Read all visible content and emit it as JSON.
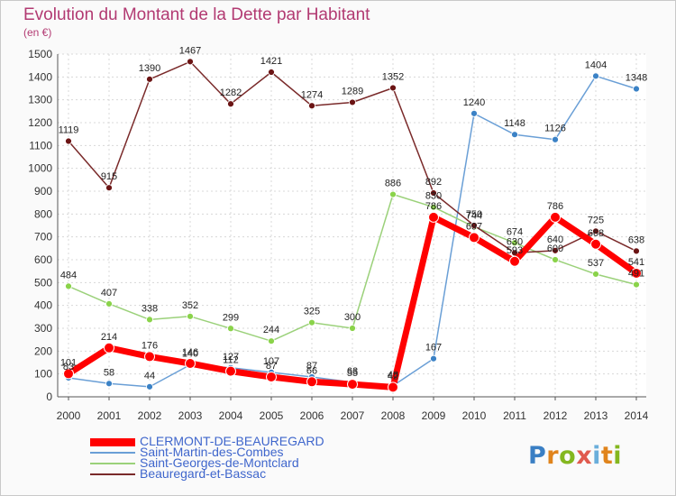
{
  "header": {
    "title": "Evolution du Montant de la Dette par Habitant",
    "unit": "(en €)"
  },
  "logo": {
    "text": "Proxiti"
  },
  "chart_data": {
    "type": "line",
    "title": "Evolution du Montant de la Dette par Habitant",
    "ylabel": "(en €)",
    "xlabel": "",
    "x": [
      "2000",
      "2001",
      "2002",
      "2003",
      "2004",
      "2005",
      "2006",
      "2007",
      "2008",
      "2009",
      "2010",
      "2011",
      "2012",
      "2013",
      "2014"
    ],
    "ylim": [
      0,
      1500
    ],
    "yticks": [
      0,
      100,
      200,
      300,
      400,
      500,
      600,
      700,
      800,
      900,
      1000,
      1100,
      1200,
      1300,
      1400,
      1500
    ],
    "grid": true,
    "legend_position": "bottom",
    "series": [
      {
        "name": "CLERMONT-DE-BEAUREGARD",
        "color": "#ff0000",
        "marker_color": "#ff0000",
        "emphasis": true,
        "values": [
          101,
          214,
          176,
          146,
          112,
          87,
          66,
          55,
          42,
          786,
          697,
          593,
          786,
          668,
          541
        ],
        "labels": [
          "101",
          "214",
          "176",
          "146",
          "112",
          "87",
          "66",
          "55",
          "42",
          "786",
          "697",
          "593",
          "786",
          "668",
          "541"
        ]
      },
      {
        "name": "Saint-Martin-des-Combes",
        "color": "#6a9fd6",
        "marker_color": "#3b82c6",
        "values": [
          83,
          58,
          44,
          140,
          127,
          107,
          87,
          63,
          48,
          167,
          1240,
          1148,
          1126,
          1404,
          1348
        ],
        "labels": [
          "83",
          "58",
          "44",
          "140",
          "127",
          "107",
          "87",
          "63",
          "48",
          "167",
          "1240",
          "1148",
          "1126",
          "1404",
          "1348"
        ]
      },
      {
        "name": "Saint-Georges-de-Montclard",
        "color": "#9bd17a",
        "marker_color": "#8ad34a",
        "values": [
          484,
          407,
          338,
          352,
          299,
          244,
          325,
          300,
          886,
          830,
          744,
          674,
          600,
          537,
          491
        ],
        "labels": [
          "484",
          "407",
          "338",
          "352",
          "299",
          "244",
          "325",
          "300",
          "886",
          "830",
          "744",
          "674",
          "600",
          "537",
          "491"
        ]
      },
      {
        "name": "Beauregard-et-Bassac",
        "color": "#7a2a2a",
        "marker_color": "#6b1414",
        "values": [
          1119,
          915,
          1390,
          1467,
          1282,
          1421,
          1274,
          1289,
          1352,
          892,
          750,
          630,
          640,
          725,
          638
        ],
        "labels": [
          "1119",
          "915",
          "1390",
          "1467",
          "1282",
          "1421",
          "1274",
          "1289",
          "1352",
          "892",
          "750",
          "630",
          "640",
          "725",
          "638"
        ]
      }
    ]
  }
}
